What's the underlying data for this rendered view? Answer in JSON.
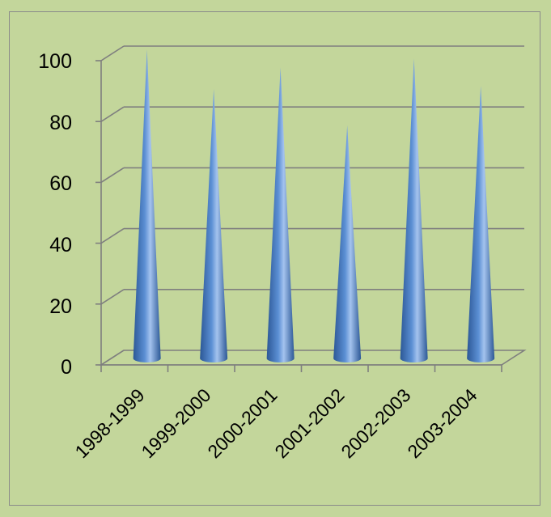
{
  "chart_data": {
    "type": "bar",
    "style": "3d-cone",
    "categories": [
      "1998-1999",
      "1999-2000",
      "2000-2001",
      "2001-2002",
      "2002-2003",
      "2003-2004"
    ],
    "values": [
      100,
      87,
      94,
      75,
      97,
      88
    ],
    "y_ticks": [
      "0",
      "20",
      "40",
      "60",
      "80",
      "100"
    ],
    "ylim": [
      0,
      100
    ],
    "grid": true,
    "legend": "none",
    "colors": {
      "background": "#c3d69b",
      "cone_dark": "#2c5896",
      "cone_mid": "#5b8fd4",
      "cone_light": "#a4c3ee",
      "grid": "#7f7f7f",
      "frame": "#8a8a8a"
    }
  }
}
